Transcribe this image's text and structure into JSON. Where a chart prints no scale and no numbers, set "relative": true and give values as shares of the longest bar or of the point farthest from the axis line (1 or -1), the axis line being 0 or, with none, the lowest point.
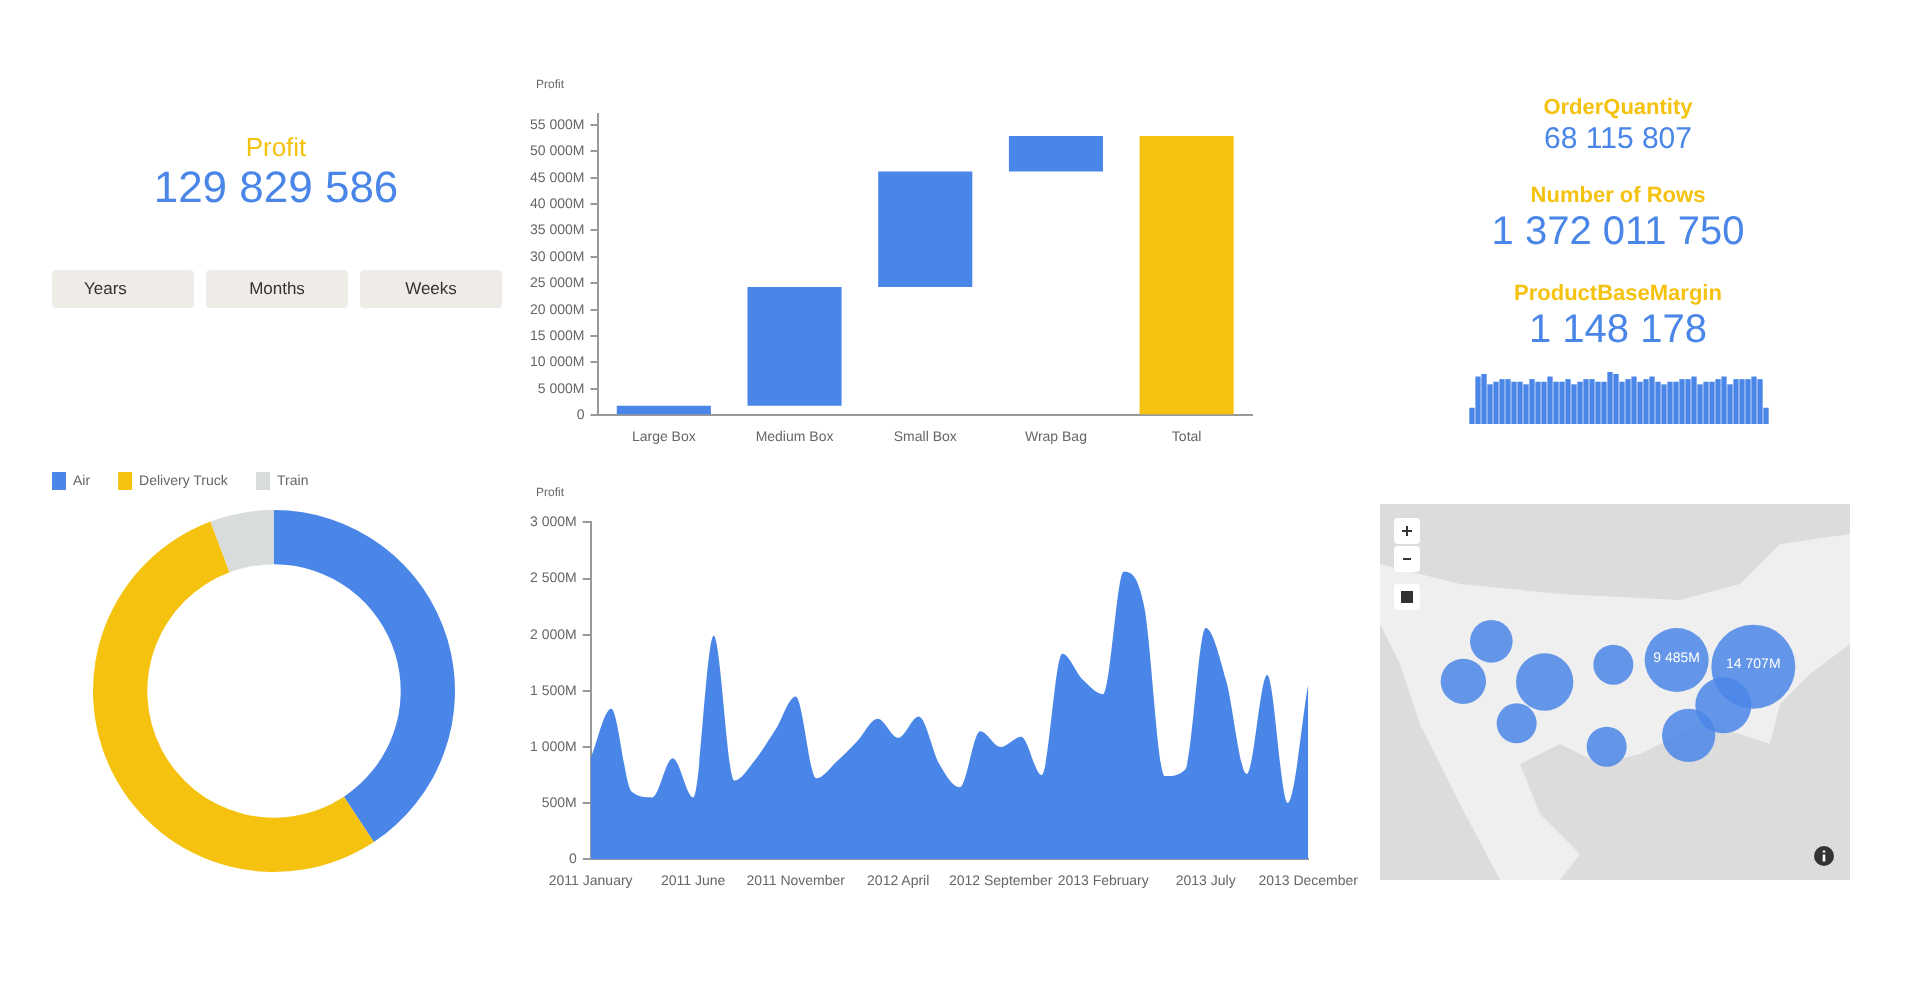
{
  "chart_data": [
    {
      "type": "other",
      "title": "Profit",
      "annotations": [
        "129 829 586",
        "Years",
        "Months",
        "Weeks"
      ]
    },
    {
      "type": "bar",
      "ylabel": "Profit",
      "categories": [
        "Large Box",
        "Medium Box",
        "Small Box",
        "Wrap Bag",
        "Total"
      ],
      "values": [
        1800,
        22500,
        21900,
        6700,
        52900
      ],
      "base": [
        0,
        1800,
        24300,
        46200,
        0
      ],
      "colors": [
        "#4a86e8",
        "#4a86e8",
        "#4a86e8",
        "#4a86e8",
        "#f5c20f"
      ],
      "ylim": [
        0,
        57000
      ],
      "yticks": [
        0,
        {
          "value": 5000,
          "label": "5 000M"
        },
        {
          "value": 10000,
          "label": "10 000M"
        },
        {
          "value": 15000,
          "label": "15 000M"
        },
        {
          "value": 20000,
          "label": "20 000M"
        },
        {
          "value": 25000,
          "label": "25 000M"
        },
        {
          "value": 30000,
          "label": "30 000M"
        },
        {
          "value": 35000,
          "label": "35 000M"
        },
        {
          "value": 40000,
          "label": "40 000M"
        },
        {
          "value": 45000,
          "label": "45 000M"
        },
        {
          "value": 50000,
          "label": "50 000M"
        },
        {
          "value": 55000,
          "label": "55 000M"
        }
      ]
    },
    {
      "type": "other",
      "annotations": [
        "OrderQuantity",
        "68 115 807",
        "Number of Rows",
        "1 372 011 750",
        "ProductBaseMargin",
        "1 148 178"
      ]
    },
    {
      "type": "bar",
      "relative": true,
      "color": "#4a86e8",
      "categories": [
        null,
        null,
        null,
        null,
        null,
        null,
        null,
        null,
        null,
        null,
        null,
        null,
        null,
        null,
        null,
        null,
        null,
        null,
        null,
        null,
        null,
        null,
        null,
        null,
        null,
        null,
        null,
        null,
        null,
        null,
        null,
        null,
        null,
        null,
        null,
        null,
        null,
        null,
        null,
        null,
        null,
        null,
        null,
        null,
        null,
        null,
        null,
        null,
        null,
        null
      ],
      "values": [
        0.3,
        0.9,
        0.95,
        0.75,
        0.8,
        0.85,
        0.85,
        0.8,
        0.8,
        0.75,
        0.85,
        0.8,
        0.8,
        0.9,
        0.8,
        0.8,
        0.85,
        0.75,
        0.8,
        0.85,
        0.85,
        0.8,
        0.8,
        1,
        0.95,
        0.8,
        0.85,
        0.9,
        0.8,
        0.85,
        0.9,
        0.8,
        0.75,
        0.8,
        0.8,
        0.85,
        0.85,
        0.9,
        0.75,
        0.8,
        0.8,
        0.85,
        0.9,
        0.75,
        0.85,
        0.85,
        0.85,
        0.9,
        0.85,
        0.3
      ]
    },
    {
      "type": "donut",
      "categories": [
        "Air",
        "Delivery Truck",
        "Train"
      ],
      "values": [
        40.7,
        53.6,
        5.7
      ],
      "colors": [
        "#4a86e8",
        "#f5c20f",
        "#d9dcdc"
      ],
      "legend": "top left"
    },
    {
      "type": "area",
      "ylabel": "Profit",
      "color": "#4a86e8",
      "categories": [
        "2011 January",
        null,
        null,
        null,
        null,
        "2011 June",
        null,
        null,
        null,
        null,
        "2011 November",
        null,
        null,
        null,
        null,
        "2012 April",
        null,
        null,
        null,
        null,
        "2012 September",
        null,
        null,
        null,
        null,
        "2013 February",
        null,
        null,
        null,
        null,
        "2013 July",
        null,
        null,
        null,
        null,
        "2013 December"
      ],
      "values": [
        900,
        1340,
        600,
        550,
        900,
        550,
        1990,
        700,
        880,
        1150,
        1450,
        720,
        870,
        1050,
        1250,
        1080,
        1270,
        850,
        640,
        1140,
        1000,
        1090,
        750,
        1830,
        1600,
        1470,
        2560,
        2250,
        740,
        800,
        2060,
        1590,
        760,
        1640,
        500,
        1560
      ],
      "ylim": [
        0,
        3000
      ],
      "yticks": [
        0,
        {
          "value": 500,
          "label": "500M"
        },
        {
          "value": 1000,
          "label": "1 000M"
        },
        {
          "value": 1500,
          "label": "1 500M"
        },
        {
          "value": 2000,
          "label": "2 000M"
        },
        {
          "value": 2500,
          "label": "2 500M"
        },
        {
          "value": 3000,
          "label": "3 000M"
        }
      ]
    },
    {
      "type": "other",
      "annotations": [
        "9 485M",
        "14 707M"
      ]
    }
  ]
}
